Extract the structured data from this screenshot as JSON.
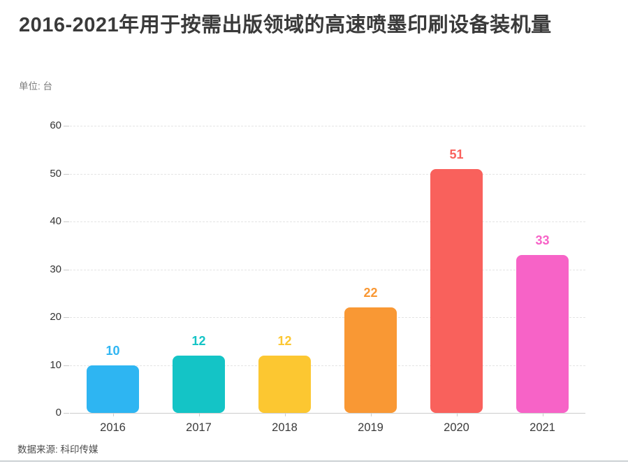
{
  "page": {
    "title": "2016-2021年用于按需出版领域的高速喷墨印刷设备装机量",
    "unit_label": "单位: 台",
    "source_label": "数据来源: 科印传媒"
  },
  "chart_data": {
    "type": "bar",
    "title": "2016-2021年用于按需出版领域的高速喷墨印刷设备装机量",
    "unit": "台",
    "source": "科印传媒",
    "categories": [
      "2016",
      "2017",
      "2018",
      "2019",
      "2020",
      "2021"
    ],
    "values": [
      10,
      12,
      12,
      22,
      51,
      33
    ],
    "bar_colors": [
      "#2eb5f2",
      "#14c4c6",
      "#fcc731",
      "#f99834",
      "#f9615c",
      "#f763c7"
    ],
    "xlabel": "",
    "ylabel": "",
    "ylim": [
      0,
      60
    ],
    "yticks": [
      0,
      10,
      20,
      30,
      40,
      50,
      60
    ],
    "grid": "horizontal-dashed",
    "legend": "none",
    "value_labels": "above-bars, colored same as bars"
  }
}
